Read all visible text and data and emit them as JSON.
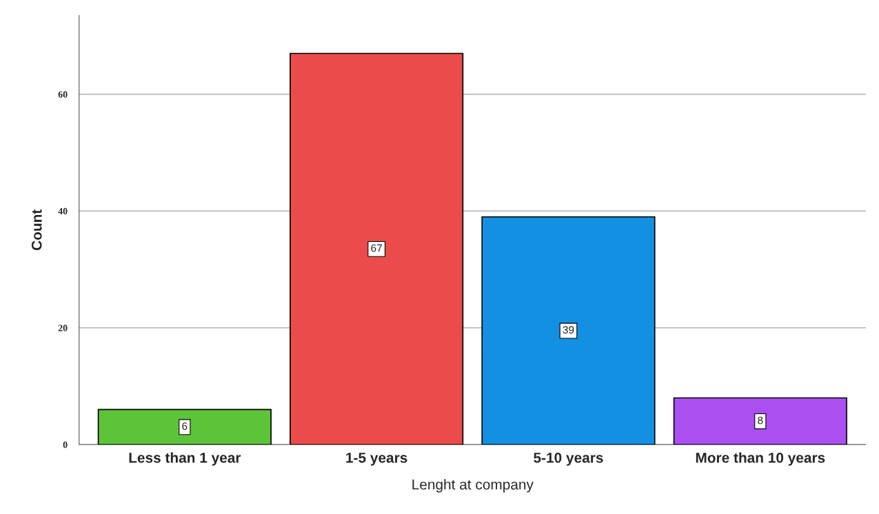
{
  "chart_data": {
    "type": "bar",
    "xlabel": "Lenght at company",
    "ylabel": "Count",
    "categories": [
      "Less than 1 year",
      "1-5 years",
      "5-10 years",
      "More than 10 years"
    ],
    "values": [
      6,
      67,
      39,
      8
    ],
    "colors": [
      "#5dc43a",
      "#ec4b4b",
      "#1490e2",
      "#aa4ff0"
    ],
    "ylim": [
      0,
      73.5
    ],
    "yticks": [
      0,
      20,
      40,
      60
    ],
    "grid": "y",
    "data_labels": true
  }
}
